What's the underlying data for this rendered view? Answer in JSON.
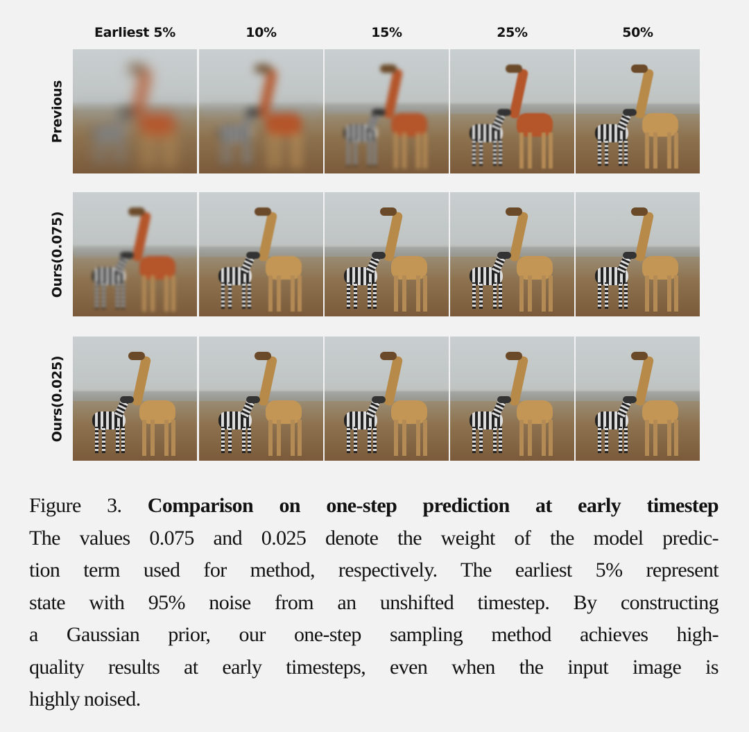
{
  "figure": {
    "column_headers": [
      "Earliest 5%",
      "10%",
      "15%",
      "25%",
      "50%"
    ],
    "row_labels": [
      "Previous",
      "Ours(0.075)",
      "Ours(0.025)"
    ],
    "caption": {
      "label": "Figure 3.",
      "title": "Comparison on one-step prediction at early timestep",
      "lines": [
        "The values 0.075 and 0.025 denote the weight of the model predic-",
        "tion term used for method, respectively. The earliest 5% represent",
        "state with 95% noise from an unshifted timestep. By constructing",
        "a Gaussian prior, our one-step sampling method achieves high-",
        "quality results at early timesteps, even when the input image is",
        "highly noised."
      ]
    }
  }
}
